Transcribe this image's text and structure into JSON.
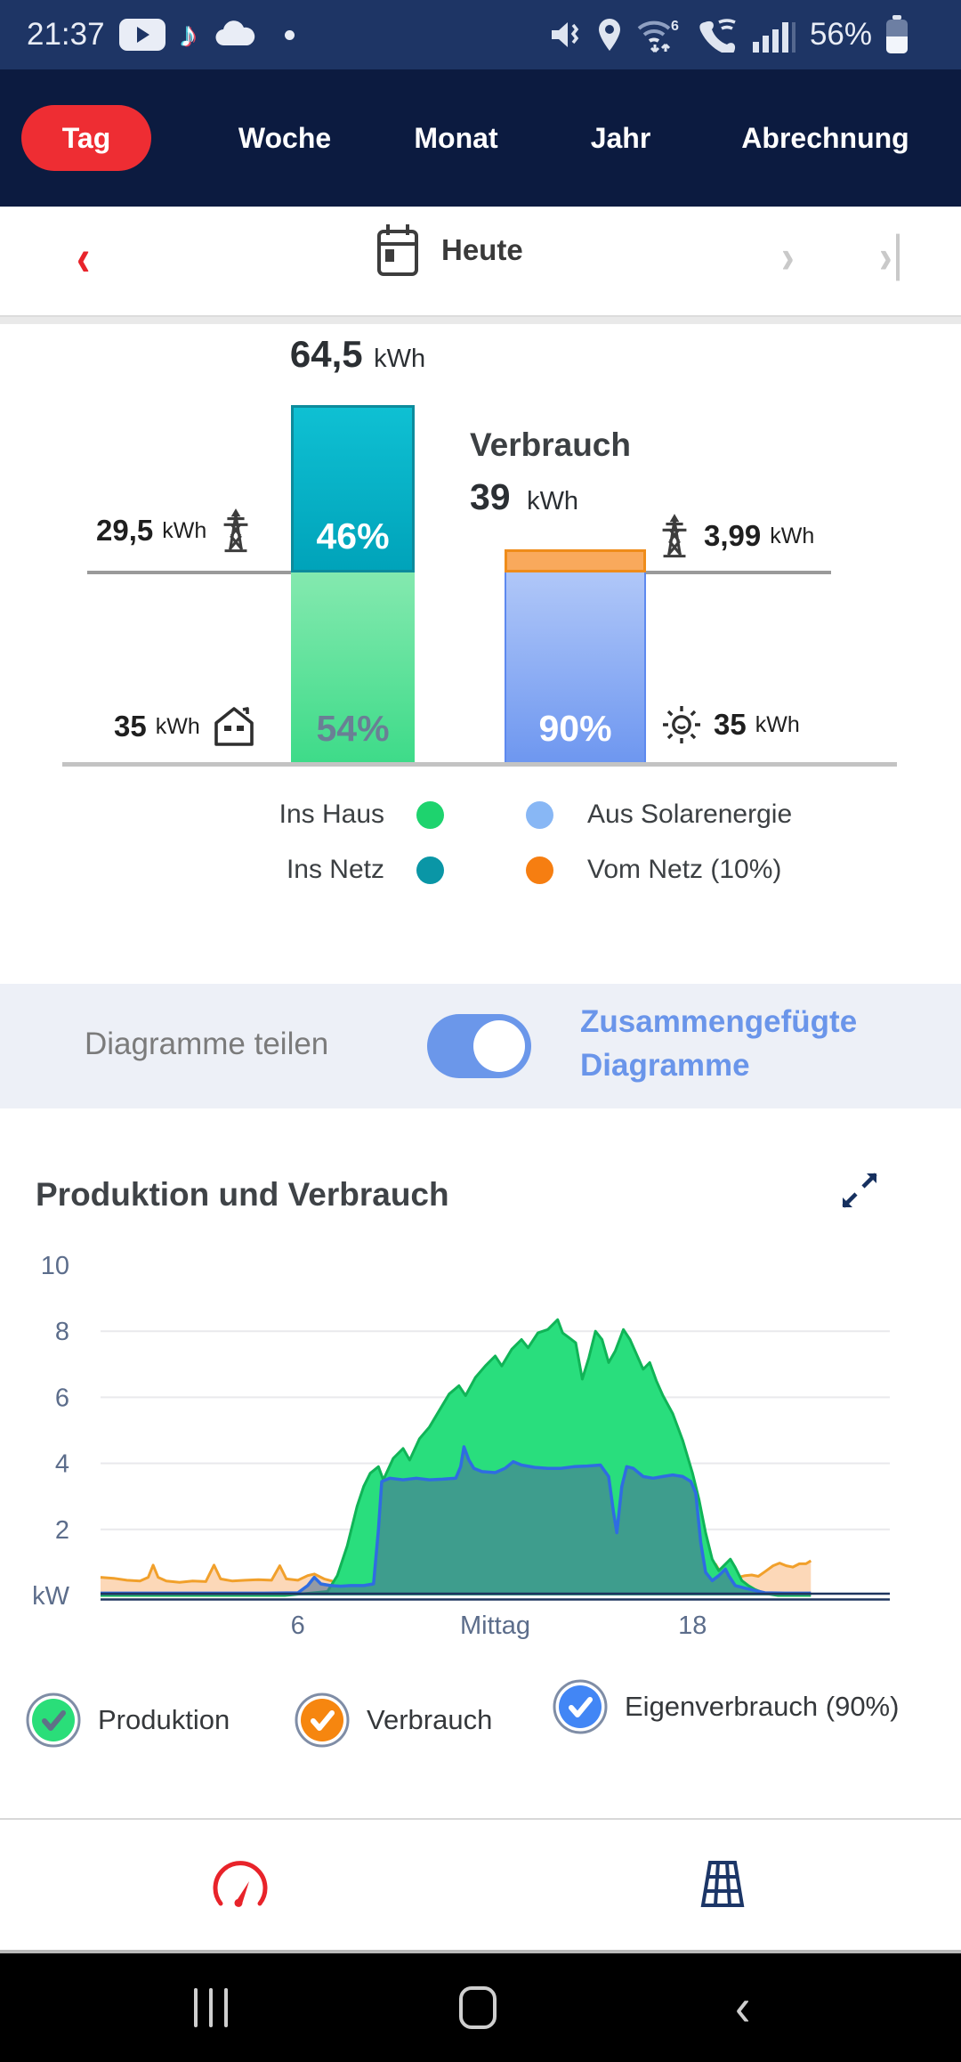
{
  "status_bar": {
    "time": "21:37",
    "battery": "56%",
    "left_icons": [
      "youtube-icon",
      "tiktok-icon",
      "cloud-icon",
      "notification-dot"
    ],
    "right_icons": [
      "mute-vibrate-icon",
      "location-icon",
      "wifi6-icon",
      "wifi-calling-icon",
      "signal-icon",
      "battery-icon"
    ]
  },
  "tabs": {
    "items": [
      {
        "label": "Tag",
        "active": true
      },
      {
        "label": "Woche",
        "active": false
      },
      {
        "label": "Monat",
        "active": false
      },
      {
        "label": "Jahr",
        "active": false
      },
      {
        "label": "Abrechnung",
        "active": false
      }
    ],
    "active_color": "#ee2d33"
  },
  "date_nav": {
    "label": "Heute",
    "prev": "‹",
    "next": "›",
    "last": "›"
  },
  "balance": {
    "production_value": "64,5",
    "production_unit": "kWh",
    "consumption_title": "Verbrauch",
    "consumption_value": "39",
    "consumption_unit": "kWh",
    "to_grid_pct": "46%",
    "to_house_pct": "54%",
    "from_solar_pct": "90%",
    "to_grid": {
      "value": "29,5",
      "unit": "kWh"
    },
    "to_house": {
      "value": "35",
      "unit": "kWh"
    },
    "grid_import": {
      "value": "3,99",
      "unit": "kWh"
    },
    "solar_used": {
      "value": "35",
      "unit": "kWh"
    },
    "legend": [
      {
        "label": "Ins Haus",
        "color": "#1ed36e"
      },
      {
        "label": "Aus Solarenergie",
        "color": "#88b7f5"
      },
      {
        "label": "Ins Netz",
        "color": "#0a96a6"
      },
      {
        "label": "Vom Netz (10%)",
        "color": "#f67e11"
      }
    ]
  },
  "share_row": {
    "label": "Diagramme teilen",
    "toggle_on": true,
    "option_label": "Zusammengefügte Diagramme",
    "accent": "#6b97ea"
  },
  "chart_section": {
    "title": "Produktion und Verbrauch",
    "legend": [
      {
        "label": "Produktion",
        "color": "#2ade79",
        "check_color": "#5f7187",
        "checked": true
      },
      {
        "label": "Verbrauch",
        "color": "#f6860f",
        "check_color": "#ffffff",
        "checked": true
      },
      {
        "label": "Eigenverbrauch (90%)",
        "color": "#4286f5",
        "check_color": "#ffffff",
        "checked": true
      }
    ]
  },
  "chart_data": [
    {
      "type": "bar",
      "title": "Tagesbilanz Produktion vs Verbrauch",
      "bars": [
        {
          "name": "Produktion",
          "total_kwh": 64.5,
          "unit": "kWh",
          "segments": [
            {
              "label": "Ins Netz",
              "pct": 46,
              "kwh": 29.5,
              "color": "#00a3ba"
            },
            {
              "label": "Ins Haus",
              "pct": 54,
              "kwh": 35,
              "color": "#3edb89"
            }
          ]
        },
        {
          "name": "Verbrauch",
          "total_kwh": 39,
          "unit": "kWh",
          "segments": [
            {
              "label": "Vom Netz",
              "pct": 10,
              "kwh": 3.99,
              "color": "#f9a95c"
            },
            {
              "label": "Aus Solarenergie",
              "pct": 90,
              "kwh": 35,
              "color": "#7ea3f2"
            }
          ]
        }
      ]
    },
    {
      "type": "area",
      "ylabel": "kW",
      "ylim": [
        0,
        10
      ],
      "xlim_hours": [
        0,
        24
      ],
      "grid": true,
      "gridlines": [
        2,
        4,
        6,
        8
      ],
      "yticks": [
        {
          "label": "10",
          "v": 10
        },
        {
          "label": "8",
          "v": 8
        },
        {
          "label": "6",
          "v": 6
        },
        {
          "label": "4",
          "v": 4
        },
        {
          "label": "2",
          "v": 2
        },
        {
          "label": "kW",
          "v": 0
        }
      ],
      "xticks": [
        {
          "label": "6",
          "h": 6
        },
        {
          "label": "Mittag",
          "h": 12
        },
        {
          "label": "18",
          "h": 18
        }
      ],
      "axis_color": "#1e355e",
      "tick_color": "#5c6d8b",
      "series": [
        {
          "name": "Verbrauch",
          "color": "#f1a02b",
          "fill": "#fcd8b8",
          "points": [
            [
              0,
              0.55
            ],
            [
              0.4,
              0.52
            ],
            [
              0.8,
              0.46
            ],
            [
              1.2,
              0.44
            ],
            [
              1.45,
              0.55
            ],
            [
              1.6,
              0.92
            ],
            [
              1.75,
              0.55
            ],
            [
              2,
              0.44
            ],
            [
              2.4,
              0.4
            ],
            [
              2.8,
              0.44
            ],
            [
              3.2,
              0.42
            ],
            [
              3.45,
              0.92
            ],
            [
              3.65,
              0.5
            ],
            [
              4,
              0.44
            ],
            [
              4.4,
              0.46
            ],
            [
              4.8,
              0.48
            ],
            [
              5.2,
              0.46
            ],
            [
              5.45,
              0.9
            ],
            [
              5.65,
              0.5
            ],
            [
              6,
              0.46
            ],
            [
              6.3,
              0.6
            ],
            [
              6.5,
              0.65
            ],
            [
              6.8,
              0.5
            ],
            [
              7.1,
              0.42
            ],
            [
              7.5,
              0.45
            ],
            [
              8,
              0.42
            ],
            [
              8.3,
              0.45
            ],
            [
              8.45,
              2.05
            ],
            [
              8.55,
              3.5
            ],
            [
              8.8,
              3.57
            ],
            [
              9.2,
              3.52
            ],
            [
              9.6,
              3.57
            ],
            [
              10,
              3.52
            ],
            [
              10.4,
              3.54
            ],
            [
              10.8,
              3.57
            ],
            [
              10.95,
              3.92
            ],
            [
              11.05,
              4.52
            ],
            [
              11.2,
              4.12
            ],
            [
              11.35,
              3.87
            ],
            [
              11.6,
              3.77
            ],
            [
              12,
              3.74
            ],
            [
              12.3,
              3.87
            ],
            [
              12.55,
              4.07
            ],
            [
              12.8,
              3.97
            ],
            [
              13.2,
              3.9
            ],
            [
              13.6,
              3.87
            ],
            [
              14,
              3.87
            ],
            [
              14.4,
              3.92
            ],
            [
              14.8,
              3.94
            ],
            [
              15.2,
              3.97
            ],
            [
              15.45,
              3.62
            ],
            [
              15.6,
              2.52
            ],
            [
              15.7,
              1.92
            ],
            [
              15.85,
              3.32
            ],
            [
              16,
              3.92
            ],
            [
              16.2,
              3.87
            ],
            [
              16.5,
              3.62
            ],
            [
              16.8,
              3.57
            ],
            [
              17.1,
              3.62
            ],
            [
              17.4,
              3.67
            ],
            [
              17.7,
              3.62
            ],
            [
              17.95,
              3.47
            ],
            [
              18.1,
              3.12
            ],
            [
              18.25,
              1.65
            ],
            [
              18.4,
              0.75
            ],
            [
              18.55,
              0.6
            ],
            [
              18.7,
              0.95
            ],
            [
              18.85,
              0.7
            ],
            [
              19,
              0.62
            ],
            [
              19.2,
              0.5
            ],
            [
              19.4,
              0.55
            ],
            [
              19.6,
              0.6
            ],
            [
              19.8,
              0.62
            ],
            [
              20,
              0.58
            ],
            [
              20.2,
              0.72
            ],
            [
              20.45,
              0.9
            ],
            [
              20.65,
              0.98
            ],
            [
              20.85,
              0.9
            ],
            [
              21.05,
              0.86
            ],
            [
              21.25,
              0.96
            ],
            [
              21.45,
              0.96
            ],
            [
              21.6,
              1.05
            ]
          ]
        },
        {
          "name": "Produktion",
          "color": "#10b457",
          "fill": "#29de7d",
          "points": [
            [
              0,
              0
            ],
            [
              5.6,
              0
            ],
            [
              6.9,
              0.12
            ],
            [
              7.2,
              0.6
            ],
            [
              7.5,
              1.5
            ],
            [
              7.8,
              2.7
            ],
            [
              8,
              3.3
            ],
            [
              8.2,
              3.7
            ],
            [
              8.45,
              3.9
            ],
            [
              8.6,
              3.5
            ],
            [
              8.9,
              4.15
            ],
            [
              9.2,
              4.45
            ],
            [
              9.4,
              4.1
            ],
            [
              9.7,
              4.75
            ],
            [
              10,
              5.1
            ],
            [
              10.3,
              5.6
            ],
            [
              10.6,
              6.1
            ],
            [
              10.9,
              6.35
            ],
            [
              11.1,
              6.05
            ],
            [
              11.4,
              6.6
            ],
            [
              11.7,
              6.95
            ],
            [
              12,
              7.25
            ],
            [
              12.2,
              6.95
            ],
            [
              12.5,
              7.45
            ],
            [
              12.8,
              7.75
            ],
            [
              13,
              7.5
            ],
            [
              13.3,
              7.95
            ],
            [
              13.6,
              8.05
            ],
            [
              13.9,
              8.35
            ],
            [
              14.05,
              7.95
            ],
            [
              14.25,
              7.8
            ],
            [
              14.45,
              7.65
            ],
            [
              14.65,
              6.55
            ],
            [
              14.85,
              7.2
            ],
            [
              15.05,
              8.0
            ],
            [
              15.25,
              7.75
            ],
            [
              15.45,
              7.05
            ],
            [
              15.65,
              7.4
            ],
            [
              15.9,
              8.05
            ],
            [
              16.1,
              7.75
            ],
            [
              16.3,
              7.3
            ],
            [
              16.5,
              6.85
            ],
            [
              16.7,
              7.05
            ],
            [
              16.9,
              6.5
            ],
            [
              17.1,
              6.05
            ],
            [
              17.4,
              5.5
            ],
            [
              17.7,
              4.7
            ],
            [
              18,
              3.7
            ],
            [
              18.2,
              2.9
            ],
            [
              18.4,
              1.9
            ],
            [
              18.6,
              1.1
            ],
            [
              18.8,
              0.75
            ],
            [
              19,
              0.95
            ],
            [
              19.15,
              1.1
            ],
            [
              19.3,
              0.85
            ],
            [
              19.5,
              0.45
            ],
            [
              19.7,
              0.3
            ],
            [
              19.9,
              0.18
            ],
            [
              20.2,
              0.06
            ],
            [
              20.6,
              0
            ],
            [
              21.6,
              0
            ]
          ]
        },
        {
          "name": "Eigenverbrauch",
          "color": "#2f6ce2",
          "fill": "rgba(77,114,152,0.6)",
          "points": [
            [
              0,
              0.07
            ],
            [
              1,
              0.07
            ],
            [
              2,
              0.07
            ],
            [
              3,
              0.07
            ],
            [
              4,
              0.07
            ],
            [
              5,
              0.07
            ],
            [
              6,
              0.08
            ],
            [
              6.3,
              0.3
            ],
            [
              6.5,
              0.55
            ],
            [
              6.7,
              0.35
            ],
            [
              7,
              0.3
            ],
            [
              7.3,
              0.28
            ],
            [
              7.6,
              0.3
            ],
            [
              8,
              0.3
            ],
            [
              8.3,
              0.35
            ],
            [
              8.45,
              2.0
            ],
            [
              8.55,
              3.45
            ],
            [
              8.8,
              3.55
            ],
            [
              9.2,
              3.5
            ],
            [
              9.6,
              3.55
            ],
            [
              10,
              3.5
            ],
            [
              10.4,
              3.52
            ],
            [
              10.8,
              3.55
            ],
            [
              10.95,
              3.9
            ],
            [
              11.05,
              4.5
            ],
            [
              11.2,
              4.1
            ],
            [
              11.35,
              3.85
            ],
            [
              11.6,
              3.75
            ],
            [
              12,
              3.72
            ],
            [
              12.3,
              3.85
            ],
            [
              12.55,
              4.05
            ],
            [
              12.8,
              3.95
            ],
            [
              13.2,
              3.88
            ],
            [
              13.6,
              3.85
            ],
            [
              14,
              3.85
            ],
            [
              14.4,
              3.9
            ],
            [
              14.8,
              3.92
            ],
            [
              15.2,
              3.95
            ],
            [
              15.45,
              3.6
            ],
            [
              15.6,
              2.5
            ],
            [
              15.7,
              1.9
            ],
            [
              15.85,
              3.3
            ],
            [
              16,
              3.9
            ],
            [
              16.2,
              3.85
            ],
            [
              16.5,
              3.6
            ],
            [
              16.8,
              3.55
            ],
            [
              17.1,
              3.6
            ],
            [
              17.4,
              3.65
            ],
            [
              17.7,
              3.6
            ],
            [
              17.95,
              3.45
            ],
            [
              18.1,
              3.1
            ],
            [
              18.25,
              1.6
            ],
            [
              18.4,
              0.7
            ],
            [
              18.6,
              0.45
            ],
            [
              18.8,
              0.6
            ],
            [
              19,
              0.8
            ],
            [
              19.1,
              0.6
            ],
            [
              19.3,
              0.3
            ],
            [
              19.6,
              0.22
            ],
            [
              19.9,
              0.15
            ],
            [
              20.2,
              0.08
            ],
            [
              20.8,
              0.07
            ],
            [
              21.6,
              0.07
            ]
          ]
        }
      ]
    }
  ]
}
